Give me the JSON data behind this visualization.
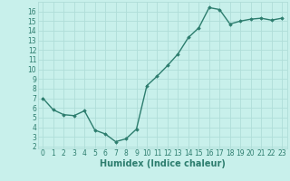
{
  "x": [
    0,
    1,
    2,
    3,
    4,
    5,
    6,
    7,
    8,
    9,
    10,
    11,
    12,
    13,
    14,
    15,
    16,
    17,
    18,
    19,
    20,
    21,
    22,
    23
  ],
  "y": [
    7.0,
    5.8,
    5.3,
    5.2,
    5.7,
    3.7,
    3.3,
    2.5,
    2.8,
    3.8,
    8.3,
    9.3,
    10.4,
    11.6,
    13.3,
    14.3,
    16.4,
    16.2,
    14.7,
    15.0,
    15.2,
    15.3,
    15.1,
    15.3
  ],
  "line_color": "#2d7d6e",
  "marker": "D",
  "marker_size": 1.8,
  "line_width": 1.0,
  "bg_color": "#c8f0eb",
  "grid_color": "#b0ddd8",
  "xlabel": "Humidex (Indice chaleur)",
  "xlabel_fontsize": 7,
  "xlabel_color": "#2d7d6e",
  "tick_fontsize": 5.5,
  "tick_color": "#2d7d6e",
  "ylim": [
    1.8,
    17.0
  ],
  "xlim": [
    -0.5,
    23.5
  ],
  "yticks": [
    2,
    3,
    4,
    5,
    6,
    7,
    8,
    9,
    10,
    11,
    12,
    13,
    14,
    15,
    16
  ],
  "xticks": [
    0,
    1,
    2,
    3,
    4,
    5,
    6,
    7,
    8,
    9,
    10,
    11,
    12,
    13,
    14,
    15,
    16,
    17,
    18,
    19,
    20,
    21,
    22,
    23
  ]
}
